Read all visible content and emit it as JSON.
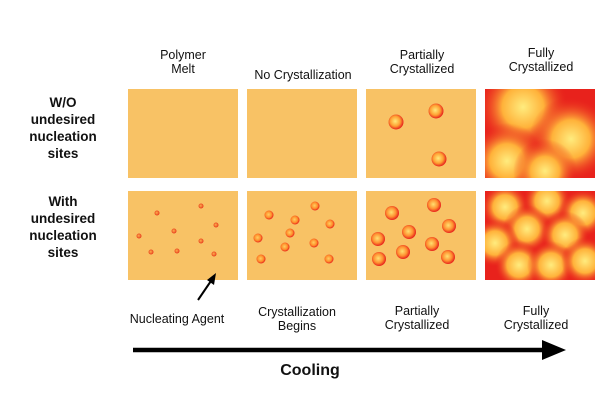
{
  "column_headers": [
    "Polymer\nMelt",
    "No Crystallization",
    "Partially\nCrystallized",
    "Fully\nCrystallized"
  ],
  "row_headers": [
    "W/O\nundesired\nnucleation\nsites",
    "With\nundesired\nnucleation\nsites"
  ],
  "bottom_captions": [
    "Nucleating Agent",
    "Crystallization\nBegins",
    "Partially\nCrystallized",
    "Fully\nCrystallized"
  ],
  "axis_label": "Cooling",
  "colors": {
    "melt": "#f8c265",
    "crystal_core": "#ffe97a",
    "crystal_edge": "#ff8a1a",
    "boundary_red": "#e8221c",
    "arrow": "#000000"
  }
}
